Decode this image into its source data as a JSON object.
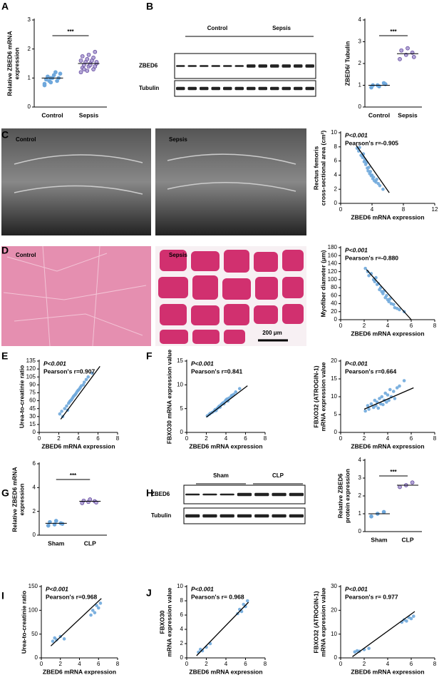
{
  "chart_data": [
    {
      "type": "strip",
      "panel": "A",
      "ylabel": [
        "Relative ZBED6 mRNA",
        "expression"
      ],
      "categories": [
        "Control",
        "Sepsis"
      ],
      "values": [
        [
          0.75,
          0.85,
          0.9,
          0.95,
          1.0,
          1.0,
          1.05,
          1.1,
          1.15,
          0.9,
          1.2,
          0.8,
          1.0
        ],
        [
          1.2,
          1.25,
          1.3,
          1.35,
          1.4,
          1.4,
          1.45,
          1.5,
          1.5,
          1.55,
          1.6,
          1.6,
          1.65,
          1.7,
          1.75,
          1.8,
          1.9,
          1.3,
          1.45,
          1.55
        ]
      ],
      "means": [
        1.0,
        1.5
      ],
      "colors": [
        "#6fa8dc",
        "#b4a7d6"
      ],
      "ylim": [
        0,
        3
      ],
      "yticks": [
        0,
        1,
        2,
        3
      ],
      "annotation": "***"
    },
    {
      "type": "strip",
      "ylabel": [
        "ZBED6/ Tubulin"
      ],
      "categories": [
        "Control",
        "Sepsis"
      ],
      "values": [
        [
          0.9,
          1.0,
          1.1,
          1.0,
          0.95,
          1.05
        ],
        [
          2.2,
          2.4,
          2.5,
          2.6,
          2.7,
          2.3
        ]
      ],
      "means": [
        1.0,
        2.45
      ],
      "colors": [
        "#6fa8dc",
        "#b4a7d6"
      ],
      "ylim": [
        0,
        4
      ],
      "yticks": [
        0,
        1,
        2,
        3,
        4
      ],
      "annotation": "***"
    },
    {
      "type": "scatter",
      "annotations": [
        "P<0.001",
        "Pearson's r=-0.905"
      ],
      "xlabel": "ZBED6 mRNA expression",
      "ylabel": [
        "Rectus femoris",
        "cross-sectional area (cm²)"
      ],
      "x": [
        2.1,
        2.3,
        2.4,
        2.6,
        2.8,
        2.9,
        3.0,
        3.1,
        3.2,
        3.3,
        3.4,
        3.5,
        3.6,
        3.7,
        3.8,
        3.9,
        4.0,
        4.1,
        4.2,
        4.3,
        4.5,
        4.6,
        4.8,
        5.0,
        5.4
      ],
      "y": [
        7.8,
        7.4,
        7.9,
        6.8,
        6.5,
        7.0,
        5.9,
        6.2,
        5.5,
        5.8,
        5.0,
        4.6,
        5.1,
        4.2,
        4.5,
        3.9,
        4.0,
        3.5,
        3.7,
        3.2,
        3.0,
        3.4,
        2.8,
        2.5,
        2.0
      ],
      "fit": {
        "x": [
          2,
          6.2
        ],
        "y": [
          8.2,
          1.5
        ]
      },
      "color": "#6fa8dc",
      "xlim": [
        0,
        12
      ],
      "xticks": [
        0,
        4,
        8,
        12
      ],
      "ylim": [
        0,
        10
      ],
      "yticks": [
        0,
        2,
        4,
        6,
        8,
        10
      ]
    },
    {
      "type": "scatter",
      "annotations": [
        "P<0.001",
        "Pearson's r=-0.880"
      ],
      "xlabel": "ZBED6 mRNA expression",
      "ylabel": [
        "Myofiber diameter (μm)"
      ],
      "x": [
        2.1,
        2.3,
        2.4,
        2.6,
        2.8,
        2.9,
        3.0,
        3.1,
        3.2,
        3.3,
        3.4,
        3.5,
        3.6,
        3.7,
        3.8,
        3.9,
        4.0,
        4.1,
        4.2,
        4.3,
        4.5,
        4.6,
        4.8,
        5.0,
        5.4
      ],
      "y": [
        128,
        120,
        110,
        115,
        100,
        95,
        105,
        88,
        90,
        75,
        80,
        70,
        65,
        72,
        55,
        60,
        50,
        45,
        52,
        40,
        38,
        30,
        28,
        25,
        20
      ],
      "fit": {
        "x": [
          2.2,
          6
        ],
        "y": [
          125,
          0
        ]
      },
      "color": "#6fa8dc",
      "xlim": [
        0,
        8
      ],
      "xticks": [
        0,
        2,
        4,
        6,
        8
      ],
      "ylim": [
        0,
        180
      ],
      "yticks": [
        0,
        20,
        40,
        60,
        80,
        100,
        120,
        140,
        160,
        180
      ]
    },
    {
      "type": "scatter",
      "panel": "E",
      "annotations": [
        "P<0.001",
        "Pearson's r=0.907"
      ],
      "xlabel": "ZBED6 mRNA expression",
      "ylabel": [
        "Urea-to-creatinie ratio"
      ],
      "x": [
        2.1,
        2.3,
        2.4,
        2.6,
        2.8,
        2.9,
        3.0,
        3.1,
        3.2,
        3.3,
        3.4,
        3.5,
        3.6,
        3.7,
        3.8,
        3.9,
        4.0,
        4.1,
        4.2,
        4.3,
        4.5,
        4.6,
        4.8,
        5.0,
        5.4
      ],
      "y": [
        35,
        40,
        30,
        45,
        50,
        42,
        55,
        58,
        60,
        62,
        65,
        68,
        70,
        72,
        75,
        78,
        80,
        82,
        85,
        88,
        90,
        95,
        100,
        105,
        112
      ],
      "fit": {
        "x": [
          2.2,
          6.2
        ],
        "y": [
          25,
          125
        ]
      },
      "color": "#6fa8dc",
      "xlim": [
        0,
        8
      ],
      "xticks": [
        0,
        2,
        4,
        6,
        8
      ],
      "ylim": [
        0,
        135
      ],
      "yticks": [
        0,
        15,
        30,
        45,
        60,
        75,
        90,
        105,
        120,
        135
      ]
    },
    {
      "type": "scatter",
      "panel": "F",
      "annotations": [
        "P<0.001",
        "Pearson's r=0.841"
      ],
      "xlabel": "ZBED6 mRNA expression",
      "ylabel": [
        "FBXO30 mRNA expression value"
      ],
      "x": [
        2.1,
        2.3,
        2.4,
        2.6,
        2.8,
        2.9,
        3.0,
        3.1,
        3.2,
        3.3,
        3.4,
        3.5,
        3.6,
        3.7,
        3.8,
        3.9,
        4.0,
        4.1,
        4.2,
        4.3,
        4.5,
        4.6,
        4.8,
        5.0,
        5.4
      ],
      "y": [
        3.5,
        3.8,
        4.0,
        4.2,
        4.5,
        4.8,
        4.6,
        5.0,
        5.2,
        5.5,
        5.3,
        5.8,
        6.0,
        6.2,
        6.0,
        6.5,
        6.8,
        7.0,
        6.6,
        7.2,
        7.5,
        7.8,
        8.0,
        8.5,
        9.2
      ],
      "fit": {
        "x": [
          2,
          6.2
        ],
        "y": [
          3.2,
          9.8
        ]
      },
      "color": "#6fa8dc",
      "xlim": [
        0,
        8
      ],
      "xticks": [
        0,
        2,
        4,
        6,
        8
      ],
      "ylim": [
        0,
        15
      ],
      "yticks": [
        0,
        5,
        10,
        15
      ]
    },
    {
      "type": "scatter",
      "annotations": [
        "P<0.001",
        "Pearson's r=0.664"
      ],
      "xlabel": "ZBED6 mRNA expression",
      "ylabel": [
        "FBXO32 (ATROGIN-1)",
        "mRNA expression value"
      ],
      "x": [
        2.1,
        2.3,
        2.4,
        2.6,
        2.8,
        2.9,
        3.0,
        3.1,
        3.2,
        3.3,
        3.4,
        3.5,
        3.6,
        3.7,
        3.8,
        3.9,
        4.0,
        4.1,
        4.2,
        4.3,
        4.5,
        4.6,
        4.8,
        5.0,
        5.4
      ],
      "y": [
        6.0,
        7.5,
        6.5,
        8.0,
        7.0,
        9.0,
        7.5,
        8.5,
        6.8,
        9.5,
        8.0,
        10.0,
        7.8,
        9.0,
        11.0,
        8.5,
        10.5,
        9.0,
        12.0,
        10.0,
        11.5,
        9.5,
        12.5,
        13.0,
        14.5
      ],
      "fit": {
        "x": [
          2,
          6.2
        ],
        "y": [
          6.5,
          12.5
        ]
      },
      "color": "#6fa8dc",
      "xlim": [
        0,
        8
      ],
      "xticks": [
        0,
        2,
        4,
        6,
        8
      ],
      "ylim": [
        0,
        20
      ],
      "yticks": [
        0,
        5,
        10,
        15,
        20
      ]
    },
    {
      "type": "strip",
      "panel": "G",
      "ylabel": [
        "Relative ZBED6 mRNA",
        "expression"
      ],
      "categories": [
        "Sham",
        "CLP"
      ],
      "values": [
        [
          0.8,
          0.9,
          1.0,
          1.1,
          1.2,
          0.95
        ],
        [
          2.7,
          2.8,
          2.85,
          2.9,
          3.0,
          2.75
        ]
      ],
      "means": [
        1.0,
        2.85
      ],
      "colors": [
        "#6fa8dc",
        "#b4a7d6"
      ],
      "ylim": [
        0,
        6
      ],
      "yticks": [
        0,
        2,
        4,
        6
      ],
      "annotation": "***"
    },
    {
      "type": "strip",
      "ylabel": [
        "Relative ZBED6",
        "protein expression"
      ],
      "categories": [
        "Sham",
        "CLP"
      ],
      "values": [
        [
          0.85,
          1.0,
          1.1
        ],
        [
          2.5,
          2.6,
          2.75
        ]
      ],
      "means": [
        1.0,
        2.6
      ],
      "colors": [
        "#6fa8dc",
        "#b4a7d6"
      ],
      "ylim": [
        0,
        4
      ],
      "yticks": [
        0,
        1,
        2,
        3,
        4
      ],
      "annotation": "***"
    },
    {
      "type": "scatter",
      "panel": "I",
      "annotations": [
        "P<0.001",
        "Pearson's r=0.968"
      ],
      "xlabel": "ZBED6 mRNA expression",
      "ylabel": [
        "Urea-to-creatinie ratio"
      ],
      "x": [
        1.2,
        1.4,
        1.6,
        2.0,
        2.4,
        5.2,
        5.4,
        5.6,
        5.8,
        6.0,
        6.2
      ],
      "y": [
        35,
        42,
        38,
        45,
        40,
        90,
        100,
        95,
        110,
        105,
        115
      ],
      "fit": {
        "x": [
          1,
          6.3
        ],
        "y": [
          25,
          125
        ]
      },
      "color": "#6fa8dc",
      "xlim": [
        0,
        8
      ],
      "xticks": [
        0,
        2,
        4,
        6,
        8
      ],
      "ylim": [
        0,
        150
      ],
      "yticks": [
        0,
        50,
        100,
        150
      ]
    },
    {
      "type": "scatter",
      "panel": "J",
      "annotations": [
        "P<0.001",
        "Pearson's r= 0.968"
      ],
      "xlabel": "ZBED6 mRNA expression",
      "ylabel": [
        "FBXO30",
        "mRNA expression value"
      ],
      "x": [
        1.2,
        1.4,
        1.6,
        2.0,
        2.4,
        5.2,
        5.4,
        5.6,
        5.8,
        6.0,
        6.2
      ],
      "y": [
        0.8,
        1.2,
        1.0,
        1.5,
        2.0,
        6.2,
        6.8,
        6.5,
        7.5,
        7.2,
        8.0
      ],
      "fit": {
        "x": [
          1,
          6.3
        ],
        "y": [
          0.3,
          7.8
        ]
      },
      "color": "#6fa8dc",
      "xlim": [
        0,
        8
      ],
      "xticks": [
        0,
        2,
        4,
        6,
        8
      ],
      "ylim": [
        0,
        10
      ],
      "yticks": [
        0,
        2,
        4,
        6,
        8,
        10
      ]
    },
    {
      "type": "scatter",
      "annotations": [
        "P<0.001",
        "Pearson's r= 0.977"
      ],
      "xlabel": "ZBED6 mRNA expression",
      "ylabel": [
        "FBXO32 (ATROGIN-1)",
        "mRNA expression value"
      ],
      "x": [
        1.2,
        1.4,
        1.6,
        2.0,
        2.4,
        5.2,
        5.4,
        5.6,
        5.8,
        6.0,
        6.2
      ],
      "y": [
        2.5,
        3.0,
        2.8,
        3.5,
        4.0,
        15,
        16,
        15.5,
        17,
        16.5,
        17.5
      ],
      "fit": {
        "x": [
          1,
          6.3
        ],
        "y": [
          0.5,
          19.5
        ]
      },
      "color": "#6fa8dc",
      "xlim": [
        0,
        8
      ],
      "xticks": [
        0,
        2,
        4,
        6,
        8
      ],
      "ylim": [
        0,
        30
      ],
      "yticks": [
        0,
        10,
        20,
        30
      ]
    }
  ],
  "blots": [
    {
      "panel": "B",
      "groups": [
        "Control",
        "Sepsis"
      ],
      "rows": [
        "ZBED6",
        "Tubulin"
      ]
    },
    {
      "panel": "H",
      "groups": [
        "Sham",
        "CLP"
      ],
      "rows": [
        "ZBED6",
        "Tubulin"
      ]
    }
  ],
  "images": [
    {
      "panel": "C",
      "labels": [
        "Control",
        "Sepsis"
      ]
    },
    {
      "panel": "D",
      "labels": [
        "Control",
        "Sepsis"
      ],
      "scale": "200 μm"
    }
  ]
}
